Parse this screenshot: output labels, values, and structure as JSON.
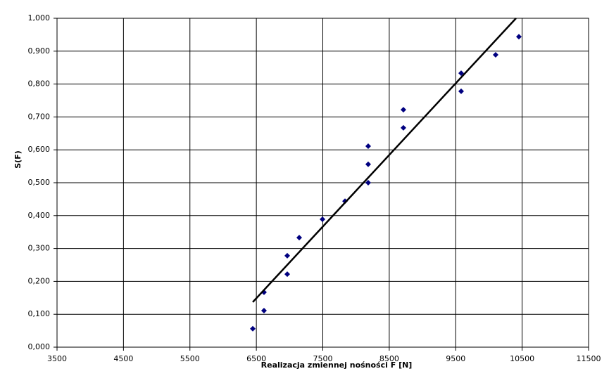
{
  "chart_data": {
    "type": "scatter",
    "x_label": "Realizacja zmiennej nośności F [N]",
    "y_label": "S(F)",
    "series": [
      {
        "color": "#000080",
        "x": [
          6446,
          6615,
          6615,
          6965,
          6965,
          7145,
          7495,
          7834,
          8183,
          8183,
          8183,
          8713,
          8713,
          9582,
          9582,
          10101,
          10451
        ],
        "values": [
          0.056,
          0.111,
          0.167,
          0.222,
          0.278,
          0.333,
          0.389,
          0.444,
          0.5,
          0.556,
          0.611,
          0.667,
          0.722,
          0.778,
          0.833,
          0.889,
          0.944
        ]
      }
    ],
    "trendline": {
      "color": "#000000",
      "x": [
        6446,
        10408
      ],
      "values": [
        0.137,
        1.0
      ]
    },
    "xlim": [
      3500,
      11500
    ],
    "xticks": [
      3500,
      4500,
      5500,
      6500,
      7500,
      8500,
      9500,
      10500,
      11500
    ],
    "ylim": [
      0,
      1
    ],
    "yticks": [
      {
        "value": 0,
        "label": "0,000"
      },
      {
        "value": 0.1,
        "label": "0,100"
      },
      {
        "value": 0.2,
        "label": "0,200"
      },
      {
        "value": 0.3,
        "label": "0,300"
      },
      {
        "value": 0.4,
        "label": "0,400"
      },
      {
        "value": 0.5,
        "label": "0,500"
      },
      {
        "value": 0.6,
        "label": "0,600"
      },
      {
        "value": 0.7,
        "label": "0,700"
      },
      {
        "value": 0.8,
        "label": "0,800"
      },
      {
        "value": 0.9,
        "label": "0,900"
      },
      {
        "value": 1,
        "label": "1,000"
      }
    ],
    "grid": true
  }
}
